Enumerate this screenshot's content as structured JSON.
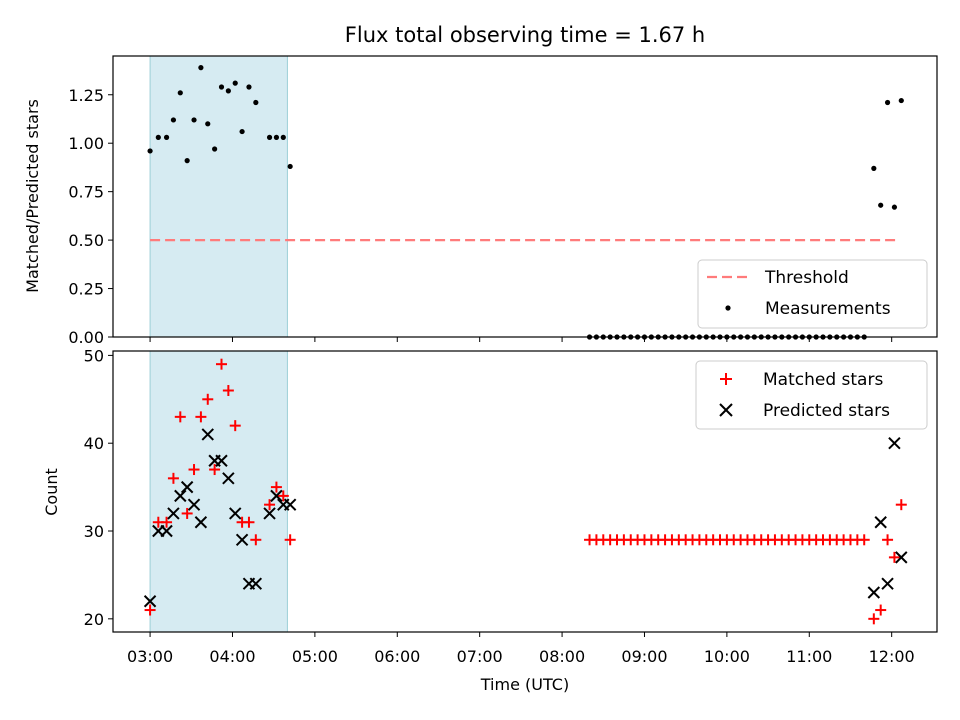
{
  "title": "Flux total observing time = 1.67 h",
  "chart_data": [
    {
      "type": "scatter",
      "panel": "top",
      "ylabel": "Matched/Predicted stars",
      "xlim": [
        "02:33",
        "12:33"
      ],
      "ylim": [
        0,
        1.45
      ],
      "yticks": [
        "0.00",
        "0.25",
        "0.50",
        "0.75",
        "1.00",
        "1.25"
      ],
      "shaded_span": [
        "03:00",
        "04:40"
      ],
      "threshold": {
        "name": "Threshold",
        "value": 0.5,
        "x": [
          "03:00",
          "12:05"
        ],
        "color": "#ff7b7b"
      },
      "series": [
        {
          "name": "Measurements",
          "color": "#000000",
          "points": [
            [
              "03:00",
              0.96
            ],
            [
              "03:06",
              1.03
            ],
            [
              "03:12",
              1.03
            ],
            [
              "03:17",
              1.12
            ],
            [
              "03:22",
              1.26
            ],
            [
              "03:27",
              0.91
            ],
            [
              "03:32",
              1.12
            ],
            [
              "03:37",
              1.39
            ],
            [
              "03:42",
              1.1
            ],
            [
              "03:47",
              0.97
            ],
            [
              "03:52",
              1.29
            ],
            [
              "03:57",
              1.27
            ],
            [
              "04:02",
              1.31
            ],
            [
              "04:07",
              1.06
            ],
            [
              "04:12",
              1.29
            ],
            [
              "04:17",
              1.21
            ],
            [
              "04:27",
              1.03
            ],
            [
              "04:32",
              1.03
            ],
            [
              "04:37",
              1.03
            ],
            [
              "04:42",
              0.88
            ],
            [
              "11:47",
              0.87
            ],
            [
              "11:52",
              0.68
            ],
            [
              "11:57",
              1.21
            ],
            [
              "12:02",
              0.67
            ],
            [
              "12:07",
              1.22
            ]
          ],
          "zero_run": {
            "start": "08:20",
            "end": "11:42",
            "step_min": 5,
            "value": 0
          }
        }
      ]
    },
    {
      "type": "scatter",
      "panel": "bottom",
      "xlabel": "Time (UTC)",
      "ylabel": "Count",
      "xlim": [
        "02:33",
        "12:33"
      ],
      "ylim": [
        18.5,
        50.5
      ],
      "xticks": [
        "03:00",
        "04:00",
        "05:00",
        "06:00",
        "07:00",
        "08:00",
        "09:00",
        "10:00",
        "11:00",
        "12:00"
      ],
      "yticks": [
        20,
        30,
        40,
        50
      ],
      "shaded_span": [
        "03:00",
        "04:40"
      ],
      "series": [
        {
          "name": "Matched stars",
          "marker": "+",
          "color": "#ff0000",
          "points": [
            [
              "03:00",
              21
            ],
            [
              "03:06",
              31
            ],
            [
              "03:12",
              31
            ],
            [
              "03:17",
              36
            ],
            [
              "03:22",
              43
            ],
            [
              "03:27",
              32
            ],
            [
              "03:32",
              37
            ],
            [
              "03:37",
              43
            ],
            [
              "03:42",
              45
            ],
            [
              "03:47",
              37
            ],
            [
              "03:52",
              49
            ],
            [
              "03:57",
              46
            ],
            [
              "04:02",
              42
            ],
            [
              "04:07",
              31
            ],
            [
              "04:12",
              31
            ],
            [
              "04:17",
              29
            ],
            [
              "04:27",
              33
            ],
            [
              "04:32",
              35
            ],
            [
              "04:37",
              34
            ],
            [
              "04:42",
              29
            ],
            [
              "11:47",
              20
            ],
            [
              "11:52",
              21
            ],
            [
              "11:57",
              29
            ],
            [
              "12:02",
              27
            ],
            [
              "12:07",
              33
            ]
          ],
          "flat_run": {
            "start": "08:20",
            "end": "11:42",
            "step_min": 5,
            "value": 29
          }
        },
        {
          "name": "Predicted stars",
          "marker": "x",
          "color": "#000000",
          "points": [
            [
              "03:00",
              22
            ],
            [
              "03:06",
              30
            ],
            [
              "03:12",
              30
            ],
            [
              "03:17",
              32
            ],
            [
              "03:22",
              34
            ],
            [
              "03:27",
              35
            ],
            [
              "03:32",
              33
            ],
            [
              "03:37",
              31
            ],
            [
              "03:42",
              41
            ],
            [
              "03:47",
              38
            ],
            [
              "03:52",
              38
            ],
            [
              "03:57",
              36
            ],
            [
              "04:02",
              32
            ],
            [
              "04:07",
              29
            ],
            [
              "04:12",
              24
            ],
            [
              "04:17",
              24
            ],
            [
              "04:27",
              32
            ],
            [
              "04:32",
              34
            ],
            [
              "04:37",
              33
            ],
            [
              "04:42",
              33
            ],
            [
              "11:47",
              23
            ],
            [
              "11:52",
              31
            ],
            [
              "11:57",
              24
            ],
            [
              "12:02",
              40
            ],
            [
              "12:07",
              27
            ]
          ]
        }
      ]
    }
  ]
}
